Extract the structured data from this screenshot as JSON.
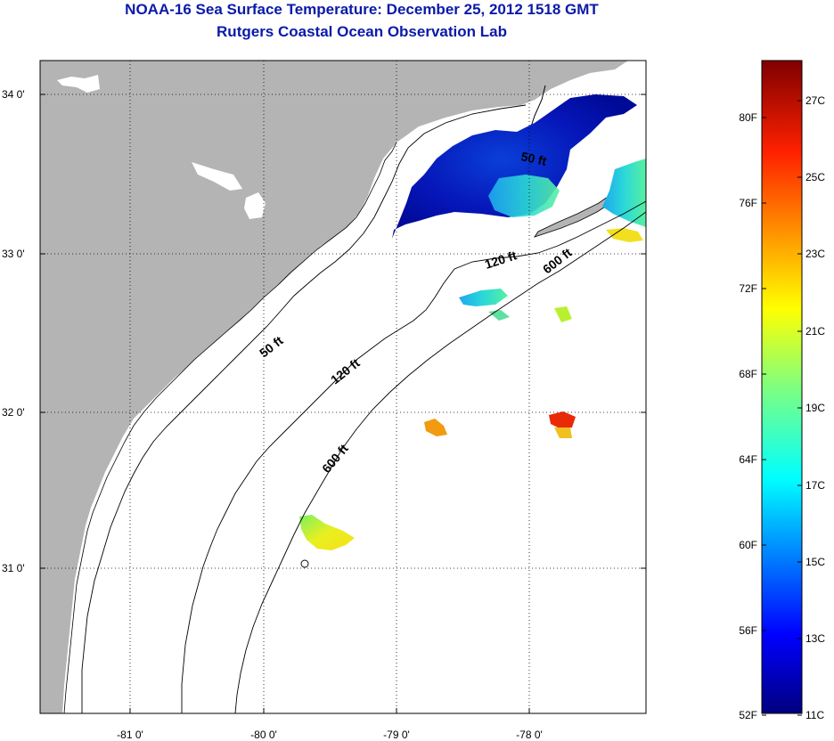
{
  "title": {
    "line1": "NOAA-16 Sea Surface Temperature:  December 25, 2012 1518 GMT",
    "line2": "Rutgers Coastal Ocean Observation Lab"
  },
  "axes": {
    "x_ticks": [
      "-81 0'",
      "-80 0'",
      "-79 0'",
      "-78 0'"
    ],
    "y_ticks": [
      "34 0'",
      "33 0'",
      "32 0'",
      "31 0'"
    ]
  },
  "contours": {
    "labels": [
      "50 ft",
      "120 ft",
      "600 ft",
      "50 ft",
      "120 ft",
      "600 ft"
    ]
  },
  "colorbar": {
    "fahrenheit": [
      "80F",
      "76F",
      "72F",
      "68F",
      "64F",
      "60F",
      "56F",
      "52F"
    ],
    "celsius": [
      "27C",
      "25C",
      "23C",
      "21C",
      "19C",
      "17C",
      "15C",
      "13C",
      "11C"
    ]
  },
  "colors": {
    "land": "#b4b4b4",
    "title": "#0a1aa8",
    "ocean_no_data": "#ffffff"
  }
}
